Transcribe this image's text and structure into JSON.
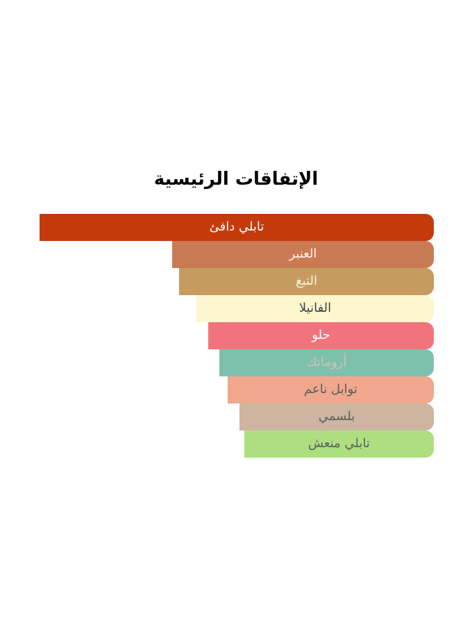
{
  "page": {
    "background": "#ffffff"
  },
  "chart": {
    "title": "الإتفاقات الرئيسية",
    "title_color": "#000000",
    "bars": [
      {
        "label": "تابلي دافئ",
        "width_pct": 100,
        "color": "#c53a0b",
        "text_color": "#ffffff"
      },
      {
        "label": "العنبر",
        "width_pct": 66.4,
        "color": "#cb7b54",
        "text_color": "#fdf3e6"
      },
      {
        "label": "التبغ",
        "width_pct": 64.6,
        "color": "#c59b5f",
        "text_color": "#faf3d8"
      },
      {
        "label": "الفانيلا",
        "width_pct": 60.2,
        "color": "#fcf7ce",
        "text_color": "#414141"
      },
      {
        "label": "حلو",
        "width_pct": 57.2,
        "color": "#f1737c",
        "text_color": "#ffffff"
      },
      {
        "label": "أروماتك",
        "width_pct": 54.4,
        "color": "#7dc1ac",
        "text_color": "#cbc4ba"
      },
      {
        "label": "توابل ناعم",
        "width_pct": 52.3,
        "color": "#f0a78d",
        "text_color": "#5e5e5e"
      },
      {
        "label": "بلسمي",
        "width_pct": 49.3,
        "color": "#cdb5a1",
        "text_color": "#5e5e5e"
      },
      {
        "label": "تابلي منعش",
        "width_pct": 48.1,
        "color": "#addf80",
        "text_color": "#5e5e5e"
      }
    ]
  },
  "chart_data": {
    "type": "bar",
    "orientation": "horizontal",
    "direction": "rtl",
    "title": "الإتفاقات الرئيسية",
    "categories": [
      "تابلي دافئ",
      "العنبر",
      "التبغ",
      "الفانيلا",
      "حلو",
      "أروماتك",
      "توابل ناعم",
      "بلسمي",
      "تابلي منعش"
    ],
    "values": [
      100,
      66.4,
      64.6,
      60.2,
      57.2,
      54.4,
      52.3,
      49.3,
      48.1
    ],
    "value_unit": "percent_of_max_bar_width",
    "bar_colors": [
      "#c53a0b",
      "#cb7b54",
      "#c59b5f",
      "#fcf7ce",
      "#f1737c",
      "#7dc1ac",
      "#f0a78d",
      "#cdb5a1",
      "#addf80"
    ],
    "label_colors": [
      "#ffffff",
      "#fdf3e6",
      "#faf3d8",
      "#414141",
      "#ffffff",
      "#cbc4ba",
      "#5e5e5e",
      "#5e5e5e",
      "#5e5e5e"
    ],
    "xlim": [
      0,
      100
    ],
    "bar_alignment": "right",
    "grid": false,
    "legend": false
  }
}
